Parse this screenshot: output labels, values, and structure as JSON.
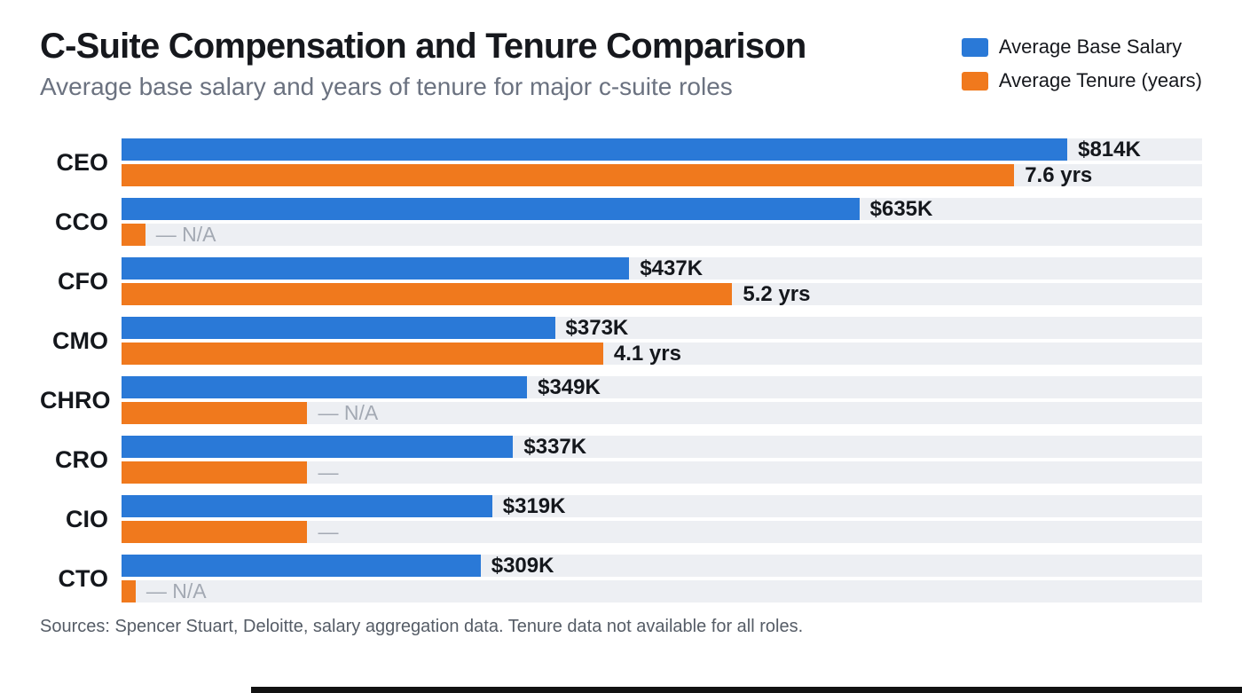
{
  "chart_data": {
    "type": "bar",
    "orientation": "horizontal",
    "title": "C-Suite Compensation and Tenure Comparison",
    "subtitle": "Average base salary and years of tenure for major c-suite roles",
    "categories": [
      "CEO",
      "CCO",
      "CFO",
      "CMO",
      "CHRO",
      "CRO",
      "CIO",
      "CTO"
    ],
    "series": [
      {
        "name": "Average Base Salary",
        "unit": "USD thousands",
        "color": "#2a79d7",
        "values": [
          814,
          635,
          437,
          373,
          349,
          337,
          319,
          309
        ],
        "labels": [
          "$814K",
          "$635K",
          "$437K",
          "$373K",
          "$349K",
          "$337K",
          "$319K",
          "$309K"
        ]
      },
      {
        "name": "Average Tenure (years)",
        "unit": "years",
        "color": "#f0791d",
        "values": [
          7.6,
          null,
          5.2,
          4.1,
          null,
          null,
          null,
          null
        ],
        "labels": [
          "7.6 yrs",
          "— N/A",
          "5.2 yrs",
          "4.1 yrs",
          "— N/A",
          "—",
          "—",
          "— N/A"
        ]
      }
    ],
    "salary_axis_max": 930,
    "tenure_axis_max": 9.2,
    "na_bar_fractions": {
      "CCO": 0.022,
      "CHRO": 0.172,
      "CRO": 0.172,
      "CIO": 0.172,
      "CTO": 0.013
    },
    "grid": false,
    "legend_position": "top-right",
    "source_note": "Sources: Spencer Stuart, Deloitte, salary aggregation data. Tenure data not available for all roles."
  },
  "colors": {
    "salary_bar": "#2a79d7",
    "tenure_bar": "#f0791d",
    "track_background": "#edeff3",
    "na_label_text": "#a3a9b3",
    "value_label_text": "#14171c",
    "subtitle_text": "#6b7280"
  }
}
